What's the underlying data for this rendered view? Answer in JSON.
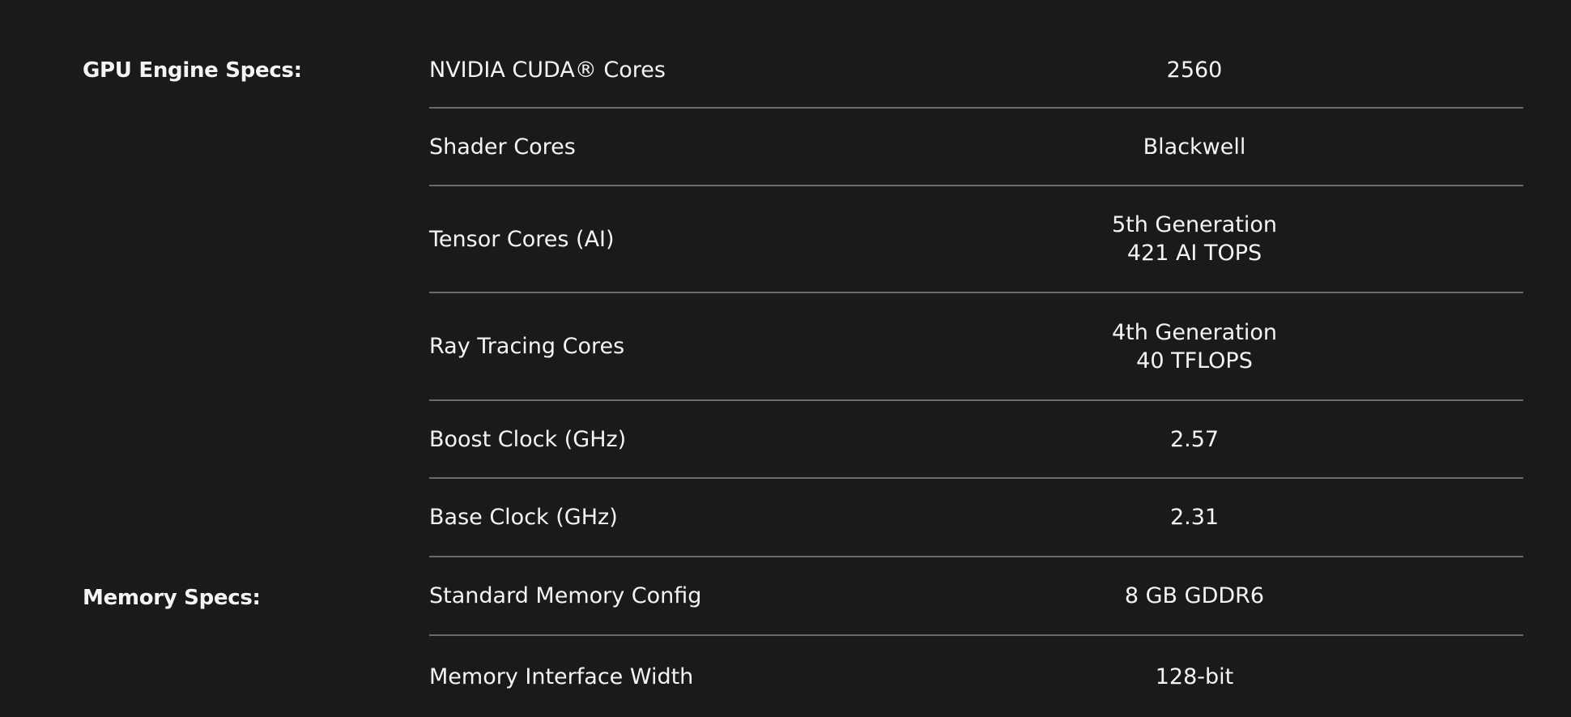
{
  "sections": [
    {
      "label": "GPU Engine Specs:"
    },
    {
      "label": "Memory Specs:"
    }
  ],
  "rows": [
    {
      "name": "NVIDIA CUDA® Cores",
      "values": [
        "2560"
      ]
    },
    {
      "name": "Shader Cores",
      "values": [
        "Blackwell"
      ]
    },
    {
      "name": "Tensor Cores (AI)",
      "values": [
        "5th Generation",
        "421 AI TOPS"
      ]
    },
    {
      "name": "Ray Tracing Cores",
      "values": [
        "4th Generation",
        "40 TFLOPS"
      ]
    },
    {
      "name": "Boost Clock (GHz)",
      "values": [
        "2.57"
      ]
    },
    {
      "name": "Base Clock (GHz)",
      "values": [
        "2.31"
      ]
    },
    {
      "name": "Standard Memory Config",
      "values": [
        "8 GB GDDR6"
      ]
    },
    {
      "name": "Memory Interface Width",
      "values": [
        "128-bit"
      ]
    }
  ]
}
